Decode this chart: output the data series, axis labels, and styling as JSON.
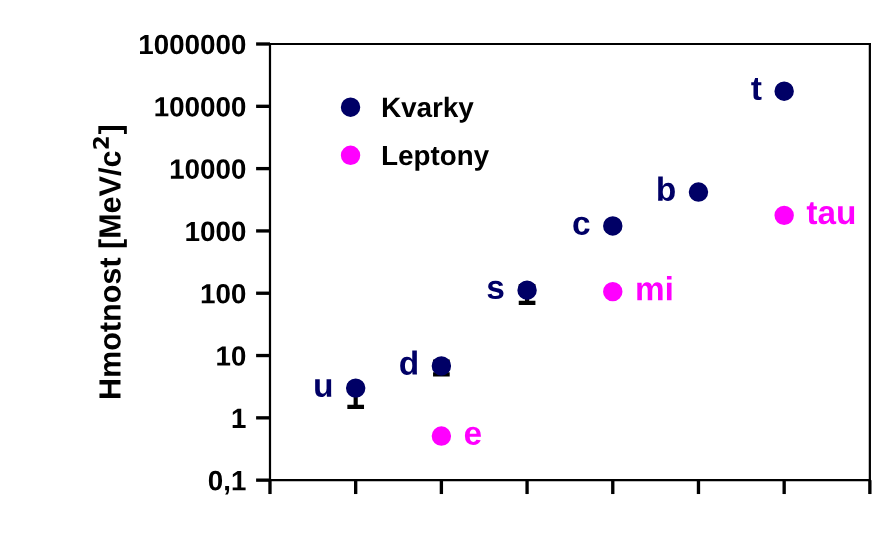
{
  "chart_data": {
    "type": "scatter",
    "ylabel": "Hmotnost [MeV/c$^{2}$]",
    "categories": [
      null,
      null,
      null,
      null,
      null,
      null
    ],
    "series": [
      {
        "name": "Kvarky",
        "color": "#000066",
        "values": [
          3,
          6.8,
          112,
          1200,
          4200,
          175000
        ],
        "errors": [
          [
            1.5,
            3.3
          ],
          [
            5,
            8
          ],
          [
            70,
            130
          ],
          null,
          null,
          null
        ],
        "value_labels": [
          "u",
          "d",
          "s",
          "c",
          "b",
          "t"
        ]
      },
      {
        "name": "Leptony",
        "color": "#ff00ff",
        "values": [
          null,
          0.511,
          null,
          106,
          null,
          1777
        ],
        "value_labels": [
          null,
          "e",
          null,
          "mi",
          null,
          "tau"
        ]
      }
    ],
    "log": "y",
    "ylim": [
      0.1,
      1000000
    ],
    "yticks": [
      {
        "value": 0.1,
        "label": "0,1"
      },
      1,
      10,
      100,
      1000,
      10000,
      100000,
      1000000
    ],
    "marker": "circle",
    "grid": false,
    "legend": "top left"
  }
}
